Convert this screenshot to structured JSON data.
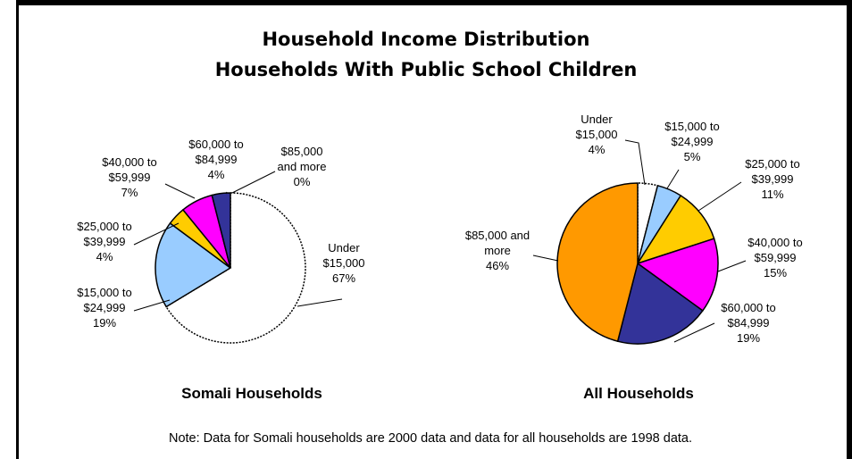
{
  "title_line1": "Household Income Distribution",
  "title_line2": "Households With Public School Children",
  "note": "Note: Data for Somali households are 2000 data and data for all households are 1998 data.",
  "chart_data": [
    {
      "type": "pie",
      "title": "Somali Households",
      "slices": [
        {
          "label": "Under $15,000",
          "value": 67,
          "color": "#ffffff",
          "label_lines": [
            "Under",
            "$15,000",
            "67%"
          ]
        },
        {
          "label": "$15,000 to $24,999",
          "value": 19,
          "color": "#99ccff",
          "label_lines": [
            "$15,000 to",
            "$24,999",
            "19%"
          ]
        },
        {
          "label": "$25,000 to $39,999",
          "value": 4,
          "color": "#ffcc00",
          "label_lines": [
            "$25,000 to",
            "$39,999",
            "4%"
          ]
        },
        {
          "label": "$40,000 to $59,999",
          "value": 7,
          "color": "#ff00ff",
          "label_lines": [
            "$40,000 to",
            "$59,999",
            "7%"
          ]
        },
        {
          "label": "$60,000 to $84,999",
          "value": 4,
          "color": "#333399",
          "label_lines": [
            "$60,000 to",
            "$84,999",
            "4%"
          ]
        },
        {
          "label": "$85,000 and more",
          "value": 0,
          "color": "#ff9900",
          "label_lines": [
            "$85,000",
            "and more",
            "0%"
          ]
        }
      ]
    },
    {
      "type": "pie",
      "title": "All Households",
      "slices": [
        {
          "label": "Under $15,000",
          "value": 4,
          "color": "#ffffff",
          "label_lines": [
            "Under",
            "$15,000",
            "4%"
          ]
        },
        {
          "label": "$15,000 to $24,999",
          "value": 5,
          "color": "#99ccff",
          "label_lines": [
            "$15,000 to",
            "$24,999",
            "5%"
          ]
        },
        {
          "label": "$25,000 to $39,999",
          "value": 11,
          "color": "#ffcc00",
          "label_lines": [
            "$25,000 to",
            "$39,999",
            "11%"
          ]
        },
        {
          "label": "$40,000 to $59,999",
          "value": 15,
          "color": "#ff00ff",
          "label_lines": [
            "$40,000 to",
            "$59,999",
            "15%"
          ]
        },
        {
          "label": "$60,000 to $84,999",
          "value": 19,
          "color": "#333399",
          "label_lines": [
            "$60,000 to",
            "$84,999",
            "19%"
          ]
        },
        {
          "label": "$85,000 and more",
          "value": 46,
          "color": "#ff9900",
          "label_lines": [
            "$85,000 and",
            "more",
            "46%"
          ]
        }
      ]
    }
  ]
}
